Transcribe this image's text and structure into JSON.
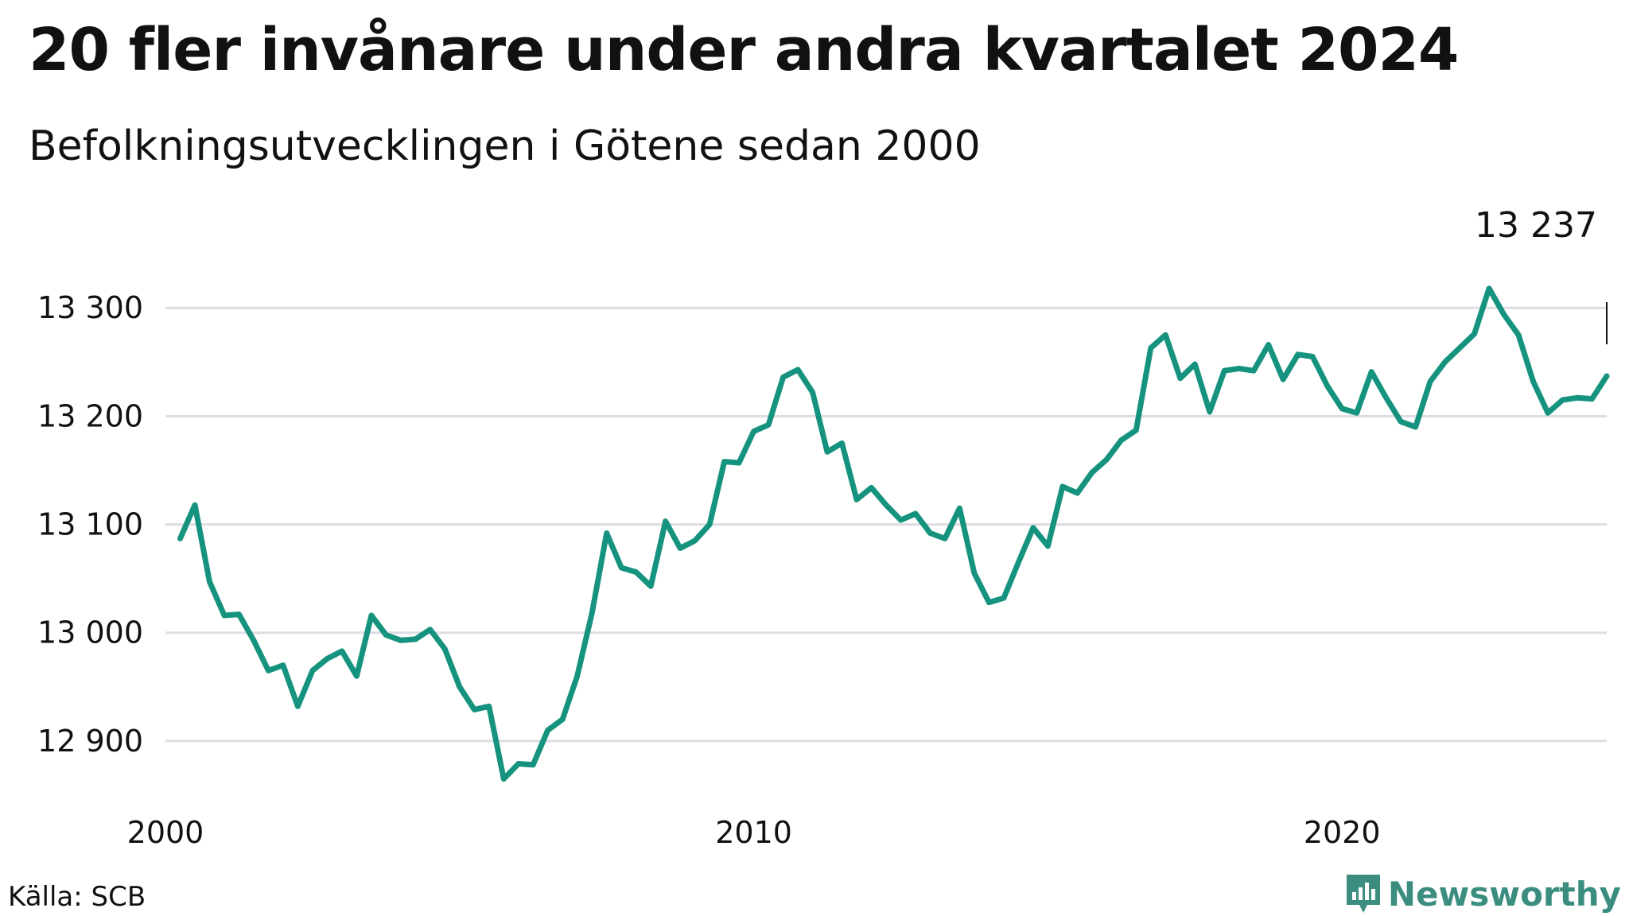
{
  "title": "20 fler invånare under andra kvartalet 2024",
  "subtitle": "Befolkningsutvecklingen i Götene sedan 2000",
  "source": "Källa: SCB",
  "brand": {
    "name": "Newsworthy",
    "icon": "newsworthy-logo-icon"
  },
  "colors": {
    "line": "#16937f",
    "grid": "#dddde3",
    "brand": "#3b8d80"
  },
  "chart_data": {
    "type": "line",
    "title": "20 fler invånare under andra kvartalet 2024",
    "subtitle": "Befolkningsutvecklingen i Götene sedan 2000",
    "xlabel": "",
    "ylabel": "",
    "ylim": [
      12850,
      13320
    ],
    "xlim": [
      2000,
      2024.5
    ],
    "x_ticks": [
      {
        "value": 2000,
        "label": "2000"
      },
      {
        "value": 2010,
        "label": "2010"
      },
      {
        "value": 2020,
        "label": "2020"
      }
    ],
    "y_ticks": [
      {
        "value": 12900,
        "label": "12 900"
      },
      {
        "value": 13000,
        "label": "13 000"
      },
      {
        "value": 13100,
        "label": "13 100"
      },
      {
        "value": 13200,
        "label": "13 200"
      },
      {
        "value": 13300,
        "label": "13 300"
      }
    ],
    "grid": true,
    "end_label": "13 237",
    "series": [
      {
        "x": [
          2000.25,
          2000.5,
          2000.75,
          2001.0,
          2001.25,
          2001.5,
          2001.75,
          2002.0,
          2002.25,
          2002.5,
          2002.75,
          2003.0,
          2003.25,
          2003.5,
          2003.75,
          2004.0,
          2004.25,
          2004.5,
          2004.75,
          2005.0,
          2005.25,
          2005.5,
          2005.75,
          2006.0,
          2006.25,
          2006.5,
          2006.75,
          2007.0,
          2007.25,
          2007.5,
          2007.75,
          2008.0,
          2008.25,
          2008.5,
          2008.75,
          2009.0,
          2009.25,
          2009.5,
          2009.75,
          2010.0,
          2010.25,
          2010.5,
          2010.75,
          2011.0,
          2011.25,
          2011.5,
          2011.75,
          2012.0,
          2012.25,
          2012.5,
          2012.75,
          2013.0,
          2013.25,
          2013.5,
          2013.75,
          2014.0,
          2014.25,
          2014.5,
          2014.75,
          2015.0,
          2015.25,
          2015.5,
          2015.75,
          2016.0,
          2016.25,
          2016.5,
          2016.75,
          2017.0,
          2017.25,
          2017.5,
          2017.75,
          2018.0,
          2018.25,
          2018.5,
          2018.75,
          2019.0,
          2019.25,
          2019.5,
          2019.75,
          2020.0,
          2020.25,
          2020.5,
          2020.75,
          2021.0,
          2021.25,
          2021.5,
          2021.75,
          2022.0,
          2022.25,
          2022.5,
          2022.75,
          2023.0,
          2023.25,
          2023.5,
          2023.75,
          2024.0,
          2024.25,
          2024.5
        ],
        "values": [
          13087,
          13118,
          13047,
          13016,
          13017,
          12993,
          12965,
          12970,
          12932,
          12965,
          12976,
          12983,
          12960,
          13016,
          12998,
          12993,
          12994,
          13003,
          12985,
          12950,
          12929,
          12932,
          12865,
          12879,
          12878,
          12910,
          12920,
          12960,
          13018,
          13092,
          13060,
          13056,
          13043,
          13103,
          13078,
          13085,
          13100,
          13158,
          13157,
          13186,
          13192,
          13236,
          13243,
          13222,
          13167,
          13175,
          13123,
          13134,
          13118,
          13104,
          13110,
          13092,
          13087,
          13115,
          13055,
          13028,
          13032,
          13065,
          13097,
          13080,
          13135,
          13129,
          13148,
          13160,
          13178,
          13187,
          13263,
          13275,
          13235,
          13248,
          13204,
          13242,
          13244,
          13242,
          13266,
          13234,
          13257,
          13255,
          13228,
          13207,
          13203,
          13241,
          13217,
          13195,
          13190,
          13232,
          13250,
          13263,
          13276,
          13318,
          13294,
          13275,
          13232,
          13203,
          13215,
          13217,
          13216,
          13237
        ]
      }
    ]
  }
}
